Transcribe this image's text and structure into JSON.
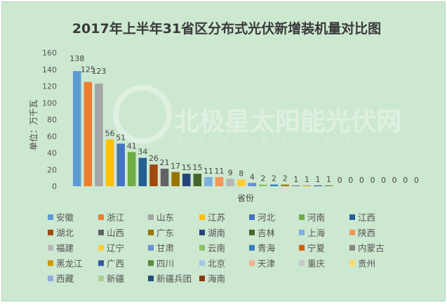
{
  "chart_data": {
    "type": "bar",
    "title": "2017年上半年31省区分布式光伏新增装机量对比图",
    "ylabel": "单位：万千瓦",
    "xlabel": "省份",
    "ylim": [
      0,
      160
    ],
    "yticks": [
      0,
      20,
      40,
      60,
      80,
      100,
      120,
      140,
      160
    ],
    "grid": false,
    "legend_position": "bottom",
    "categories": [
      "安徽",
      "浙江",
      "山东",
      "江苏",
      "河北",
      "河南",
      "江西",
      "湖北",
      "山西",
      "广东",
      "湖南",
      "吉林",
      "上海",
      "陕西",
      "福建",
      "辽宁",
      "甘肃",
      "云南",
      "青海",
      "宁夏",
      "内蒙古",
      "黑龙江",
      "广西",
      "四川",
      "北京",
      "天津",
      "重庆",
      "贵州",
      "西藏",
      "新疆",
      "新疆兵团",
      "海南"
    ],
    "values": [
      138,
      125,
      123,
      56,
      51,
      41,
      34,
      26,
      21,
      17,
      15,
      15,
      11,
      11,
      9,
      8,
      4,
      2,
      2,
      2,
      1,
      1,
      1,
      1,
      0,
      0,
      0,
      0,
      0,
      0,
      0,
      0
    ],
    "colors": [
      "#5b9bd5",
      "#ed7d31",
      "#a5a5a5",
      "#ffc000",
      "#4472c4",
      "#70ad47",
      "#255e91",
      "#9e480e",
      "#636363",
      "#997300",
      "#264478",
      "#43682b",
      "#7cafdd",
      "#f1975a",
      "#b7b7b7",
      "#ffcd33",
      "#698ed0",
      "#8cc168",
      "#327dc2",
      "#d26012",
      "#848484",
      "#cc9a00",
      "#335aa1",
      "#5a8a39",
      "#a2c4e9",
      "#f5b08e",
      "#c9c9c9",
      "#ffd966",
      "#8faadc",
      "#a9d18e",
      "#1f4e79",
      "#843c0c"
    ]
  },
  "watermark": {
    "name": "北极星太阳能光伏网",
    "url": "guangfu.bjx.com.cn"
  }
}
